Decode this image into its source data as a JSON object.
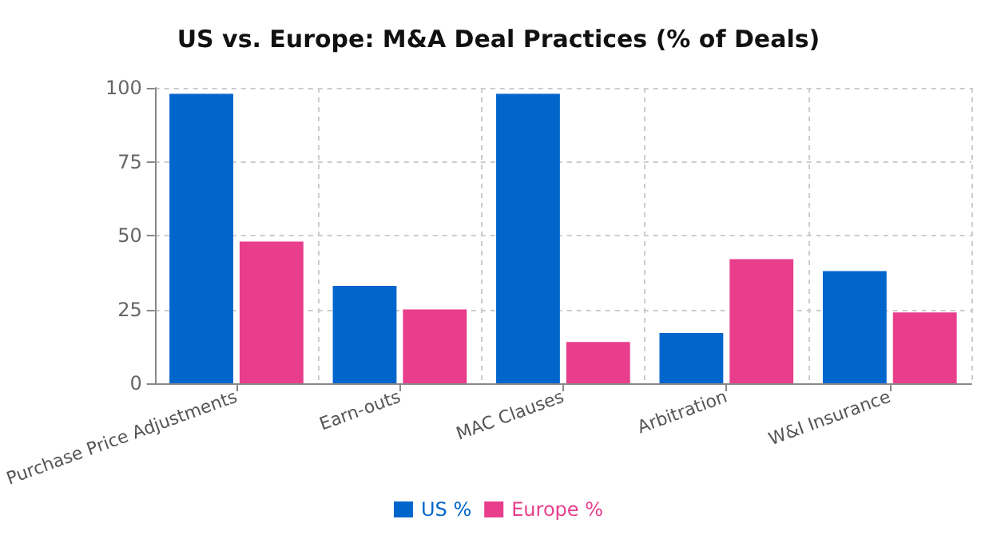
{
  "chart_data": {
    "type": "bar",
    "title": "US vs. Europe: M&A Deal Practices (% of Deals)",
    "categories": [
      "Purchase Price Adjustments",
      "Earn-outs",
      "MAC Clauses",
      "Arbitration",
      "W&I Insurance"
    ],
    "series": [
      {
        "name": "US %",
        "color": "#0066cc",
        "values": [
          98,
          33,
          98,
          17,
          38
        ]
      },
      {
        "name": "Europe %",
        "color": "#e83e8c",
        "values": [
          48,
          25,
          14,
          42,
          24
        ]
      }
    ],
    "ylim": [
      0,
      100
    ],
    "yticks": [
      0,
      25,
      50,
      75,
      100
    ],
    "grid": true,
    "legend": "bottom"
  }
}
